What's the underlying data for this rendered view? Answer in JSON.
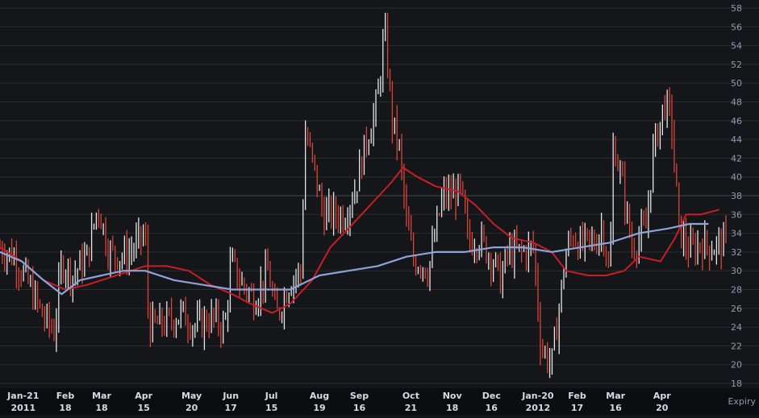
{
  "colors": {
    "background": "#141619",
    "grid": "#2a2d31",
    "axis_text": "#8f9bb3",
    "bottom_text": "#d6dbe4",
    "up_bar": "#e6e6e6",
    "down_bar": "#d9453a",
    "ma_fast": "#c81e28",
    "ma_slow": "#8fa3d9",
    "bottom_band": "#0c0d10"
  },
  "chart_data": {
    "type": "line",
    "title": "",
    "xlabel": "Expiry",
    "ylabel": "",
    "ylim": [
      18,
      58
    ],
    "y_ticks": [
      18,
      20,
      22,
      24,
      26,
      28,
      30,
      32,
      34,
      36,
      38,
      40,
      42,
      44,
      46,
      48,
      50,
      52,
      54,
      56,
      58
    ],
    "highlight_level": 38,
    "grid": true,
    "x_ticks": [
      {
        "label": "Jan-21",
        "sub": "2011",
        "t": 0.032
      },
      {
        "label": "Feb",
        "sub": "18",
        "t": 0.09
      },
      {
        "label": "Mar",
        "sub": "18",
        "t": 0.14
      },
      {
        "label": "Apr",
        "sub": "15",
        "t": 0.198
      },
      {
        "label": "May",
        "sub": "20",
        "t": 0.264
      },
      {
        "label": "Jun",
        "sub": "17",
        "t": 0.318
      },
      {
        "label": "Jul",
        "sub": "15",
        "t": 0.374
      },
      {
        "label": "Aug",
        "sub": "19",
        "t": 0.44
      },
      {
        "label": "Sep",
        "sub": "16",
        "t": 0.495
      },
      {
        "label": "Oct",
        "sub": "21",
        "t": 0.566
      },
      {
        "label": "Nov",
        "sub": "18",
        "t": 0.623
      },
      {
        "label": "Dec",
        "sub": "16",
        "t": 0.677
      },
      {
        "label": "Jan-20",
        "sub": "2012",
        "t": 0.741
      },
      {
        "label": "Feb",
        "sub": "17",
        "t": 0.795
      },
      {
        "label": "Mar",
        "sub": "16",
        "t": 0.848
      },
      {
        "label": "Apr",
        "sub": "20",
        "t": 0.912
      }
    ],
    "daily_anchors": [
      [
        0.0,
        32.5
      ],
      [
        0.02,
        31.5
      ],
      [
        0.04,
        28.5
      ],
      [
        0.06,
        25.0
      ],
      [
        0.075,
        23.5
      ],
      [
        0.085,
        31.0
      ],
      [
        0.1,
        29.5
      ],
      [
        0.12,
        31.5
      ],
      [
        0.135,
        37.0
      ],
      [
        0.15,
        32.0
      ],
      [
        0.17,
        31.5
      ],
      [
        0.185,
        32.5
      ],
      [
        0.2,
        34.0
      ],
      [
        0.205,
        24.0
      ],
      [
        0.23,
        24.5
      ],
      [
        0.25,
        25.5
      ],
      [
        0.27,
        24.0
      ],
      [
        0.29,
        25.0
      ],
      [
        0.31,
        24.0
      ],
      [
        0.318,
        31.0
      ],
      [
        0.33,
        29.0
      ],
      [
        0.35,
        27.0
      ],
      [
        0.37,
        30.0
      ],
      [
        0.38,
        25.0
      ],
      [
        0.4,
        29.0
      ],
      [
        0.415,
        30.0
      ],
      [
        0.42,
        45.0
      ],
      [
        0.435,
        40.0
      ],
      [
        0.445,
        36.0
      ],
      [
        0.46,
        36.0
      ],
      [
        0.475,
        36.0
      ],
      [
        0.49,
        39.0
      ],
      [
        0.505,
        44.0
      ],
      [
        0.52,
        48.0
      ],
      [
        0.53,
        56.0
      ],
      [
        0.54,
        46.0
      ],
      [
        0.55,
        43.0
      ],
      [
        0.56,
        35.0
      ],
      [
        0.57,
        31.0
      ],
      [
        0.58,
        31.0
      ],
      [
        0.59,
        30.0
      ],
      [
        0.6,
        34.0
      ],
      [
        0.61,
        38.0
      ],
      [
        0.62,
        38.0
      ],
      [
        0.635,
        38.5
      ],
      [
        0.645,
        33.0
      ],
      [
        0.66,
        33.5
      ],
      [
        0.68,
        31.0
      ],
      [
        0.69,
        29.0
      ],
      [
        0.7,
        32.0
      ],
      [
        0.72,
        32.0
      ],
      [
        0.735,
        32.5
      ],
      [
        0.745,
        22.0
      ],
      [
        0.76,
        20.0
      ],
      [
        0.77,
        26.0
      ],
      [
        0.78,
        32.0
      ],
      [
        0.79,
        34.0
      ],
      [
        0.8,
        32.5
      ],
      [
        0.81,
        33.0
      ],
      [
        0.82,
        33.0
      ],
      [
        0.83,
        35.0
      ],
      [
        0.84,
        29.0
      ],
      [
        0.845,
        44.0
      ],
      [
        0.86,
        38.0
      ],
      [
        0.87,
        32.5
      ],
      [
        0.88,
        33.5
      ],
      [
        0.89,
        34.5
      ],
      [
        0.9,
        43.0
      ],
      [
        0.91,
        46.0
      ],
      [
        0.915,
        48.0
      ],
      [
        0.925,
        46.0
      ],
      [
        0.935,
        34.5
      ],
      [
        0.95,
        32.0
      ],
      [
        0.965,
        33.0
      ],
      [
        0.98,
        32.5
      ],
      [
        1.0,
        33.0
      ]
    ],
    "series": [
      {
        "color": "#c81e28",
        "points": [
          [
            0.0,
            32.5
          ],
          [
            0.03,
            31.0
          ],
          [
            0.06,
            29.0
          ],
          [
            0.09,
            28.0
          ],
          [
            0.12,
            28.5
          ],
          [
            0.16,
            29.5
          ],
          [
            0.2,
            30.5
          ],
          [
            0.23,
            30.5
          ],
          [
            0.26,
            30.0
          ],
          [
            0.29,
            28.5
          ],
          [
            0.32,
            27.5
          ],
          [
            0.345,
            26.5
          ],
          [
            0.375,
            25.5
          ],
          [
            0.4,
            26.5
          ],
          [
            0.43,
            29.0
          ],
          [
            0.455,
            32.5
          ],
          [
            0.48,
            34.5
          ],
          [
            0.51,
            37.0
          ],
          [
            0.54,
            39.5
          ],
          [
            0.555,
            41.0
          ],
          [
            0.575,
            40.0
          ],
          [
            0.6,
            39.0
          ],
          [
            0.63,
            38.5
          ],
          [
            0.655,
            37.0
          ],
          [
            0.68,
            35.0
          ],
          [
            0.705,
            33.5
          ],
          [
            0.735,
            33.0
          ],
          [
            0.76,
            32.0
          ],
          [
            0.78,
            30.0
          ],
          [
            0.81,
            29.5
          ],
          [
            0.835,
            29.5
          ],
          [
            0.86,
            30.0
          ],
          [
            0.88,
            31.5
          ],
          [
            0.91,
            31.0
          ],
          [
            0.93,
            33.5
          ],
          [
            0.945,
            36.0
          ],
          [
            0.965,
            36.0
          ],
          [
            0.99,
            36.5
          ]
        ]
      },
      {
        "color": "#8fa3d9",
        "points": [
          [
            0.0,
            32.0
          ],
          [
            0.03,
            31.0
          ],
          [
            0.06,
            29.0
          ],
          [
            0.085,
            27.5
          ],
          [
            0.11,
            29.0
          ],
          [
            0.14,
            29.5
          ],
          [
            0.17,
            30.0
          ],
          [
            0.2,
            30.0
          ],
          [
            0.24,
            29.0
          ],
          [
            0.28,
            28.5
          ],
          [
            0.32,
            28.0
          ],
          [
            0.36,
            28.0
          ],
          [
            0.4,
            28.0
          ],
          [
            0.44,
            29.5
          ],
          [
            0.48,
            30.0
          ],
          [
            0.52,
            30.5
          ],
          [
            0.56,
            31.5
          ],
          [
            0.6,
            32.0
          ],
          [
            0.64,
            32.0
          ],
          [
            0.68,
            32.5
          ],
          [
            0.72,
            32.5
          ],
          [
            0.76,
            32.0
          ],
          [
            0.8,
            32.5
          ],
          [
            0.84,
            33.0
          ],
          [
            0.88,
            34.0
          ],
          [
            0.92,
            34.5
          ],
          [
            0.95,
            35.0
          ],
          [
            0.975,
            35.0
          ]
        ]
      }
    ]
  }
}
